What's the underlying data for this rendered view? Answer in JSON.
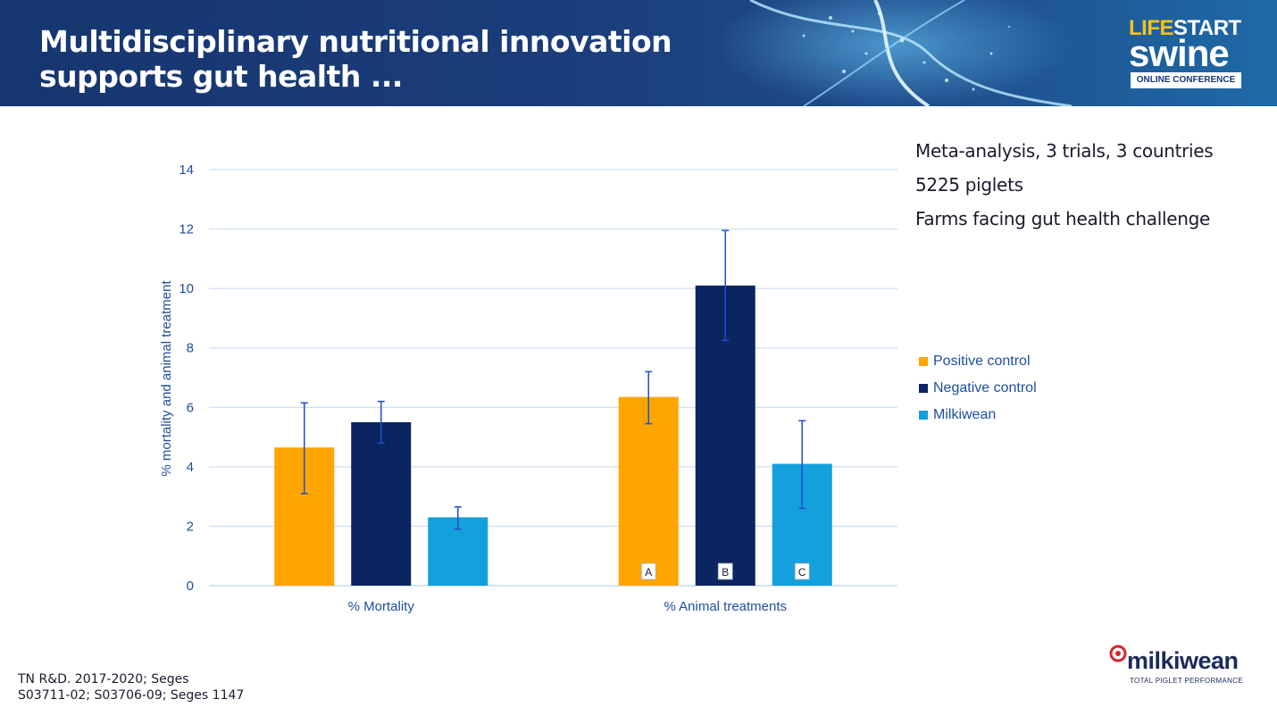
{
  "header": {
    "title_line1": "Multidisciplinary nutritional innovation",
    "title_line2": "supports gut health ..."
  },
  "logo": {
    "life": "LIFE",
    "start": "START",
    "swine": "swine",
    "badge": "ONLINE CONFERENCE"
  },
  "info": {
    "line1": "Meta-analysis, 3 trials, 3 countries",
    "line2": "5225 piglets",
    "line3": "Farms facing gut health challenge"
  },
  "footer": {
    "line1": "TN R&D. 2017-2020; Seges",
    "line2": "S03711-02;  S03706-09; Seges 1147"
  },
  "brand": {
    "name": "milkiwean",
    "tagline": "TOTAL PIGLET PERFORMANCE"
  },
  "chart_data": {
    "type": "bar",
    "categories": [
      "% Mortality",
      "% Animal treatments"
    ],
    "ylabel": "% mortality and animal treatment",
    "xlabel": "",
    "ylim": [
      0,
      14
    ],
    "yticks": [
      0,
      2,
      4,
      6,
      8,
      10,
      12,
      14
    ],
    "grid": true,
    "legend_position": "right",
    "series": [
      {
        "name": "Positive control",
        "color": "#ffa500",
        "values": [
          4.65,
          6.35
        ],
        "error_low": [
          3.1,
          5.45
        ],
        "error_high": [
          6.15,
          7.2
        ],
        "labels": [
          "",
          "A"
        ]
      },
      {
        "name": "Negative control",
        "color": "#0b2560",
        "values": [
          5.5,
          10.1
        ],
        "error_low": [
          4.8,
          8.25
        ],
        "error_high": [
          6.2,
          11.95
        ],
        "labels": [
          "",
          "B"
        ]
      },
      {
        "name": "Milkiwean",
        "color": "#13a0dc",
        "values": [
          2.3,
          4.1
        ],
        "error_low": [
          1.9,
          2.6
        ],
        "error_high": [
          2.65,
          5.55
        ],
        "labels": [
          "",
          "C"
        ]
      }
    ],
    "colors": {
      "axis": "#1f4e9c",
      "grid": "#c6d8ef",
      "error_bar": "#1f4ecf"
    }
  }
}
